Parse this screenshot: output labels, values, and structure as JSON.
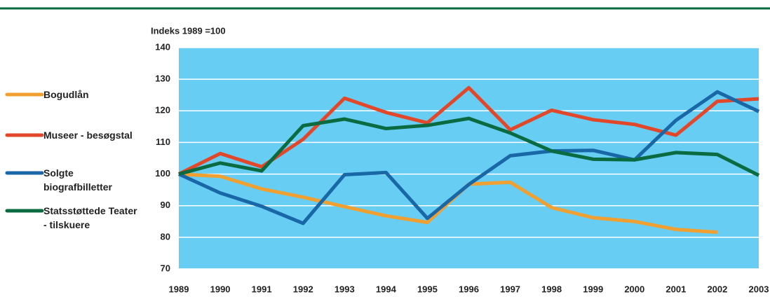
{
  "chart_data": {
    "type": "line",
    "y_axis_label": "Indeks 1989 =100",
    "x": [
      1989,
      1990,
      1991,
      1992,
      1993,
      1994,
      1995,
      1996,
      1997,
      1998,
      1999,
      2000,
      2001,
      2002,
      2003
    ],
    "xlim": [
      1989,
      2003
    ],
    "xticks": [
      1989,
      1990,
      1991,
      1992,
      1993,
      1994,
      1995,
      1996,
      1997,
      1998,
      1999,
      2000,
      2001,
      2002,
      2003
    ],
    "ylim": [
      70,
      140
    ],
    "yticks": [
      70,
      80,
      90,
      100,
      110,
      120,
      130,
      140
    ],
    "grid": true,
    "legend": "left",
    "series": [
      {
        "name": "Bogudlån",
        "color": "#f0a030",
        "values": [
          100,
          99.3,
          95.3,
          92.7,
          89.7,
          86.8,
          84.7,
          96.8,
          97.4,
          89.4,
          86.2,
          85,
          82.5,
          81.6,
          null
        ]
      },
      {
        "name": "Museer - besøgstal",
        "color": "#e2472a",
        "values": [
          100,
          106.5,
          102.3,
          111,
          124,
          119.5,
          116.2,
          127.3,
          114,
          120.2,
          117.2,
          115.7,
          112.3,
          123,
          123.8
        ]
      },
      {
        "name": "Solgte biografbilletter",
        "color": "#1a67a8",
        "values": [
          100,
          94,
          89.8,
          84.4,
          99.8,
          100.5,
          86,
          96.7,
          105.8,
          107.3,
          107.5,
          104.5,
          117,
          126,
          119.8
        ]
      },
      {
        "name": "Statsstøttede Teater - tilskuere",
        "color": "#0a6a40",
        "values": [
          100,
          103.5,
          101,
          115.3,
          117.4,
          114.4,
          115.4,
          117.6,
          113,
          107.3,
          104.7,
          104.5,
          106.8,
          106.2,
          99.6
        ]
      }
    ]
  }
}
